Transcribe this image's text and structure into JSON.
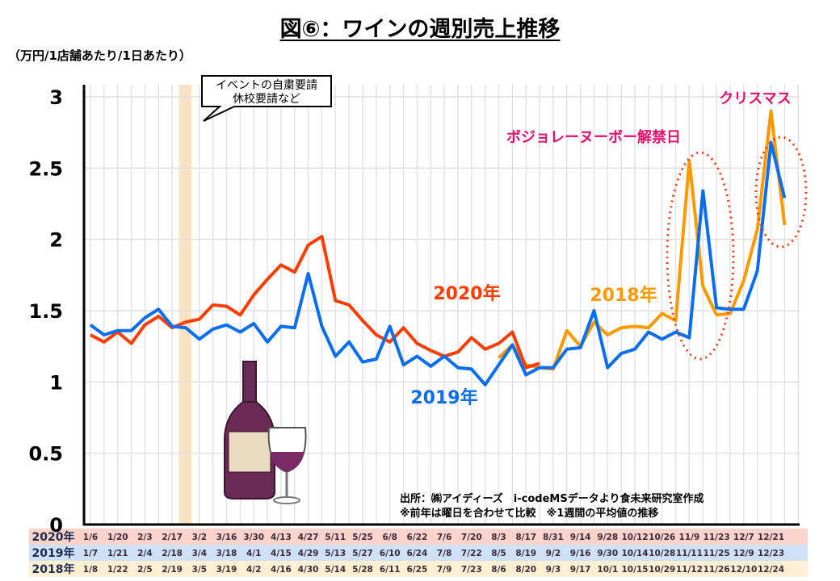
{
  "title": "図⑥：ワインの週別売上推移",
  "unit": "（万円/1店舗あたり/1日あたり）",
  "callout": [
    "イベントの自粛要請",
    "休校要請など"
  ],
  "source": [
    "出所：㈱アイディーズ　i-codeMSデータより食未来研究室作成",
    "※前年は曜日を合わせて比較　※1週間の平均値の推移"
  ],
  "annotations": {
    "beaujolais": "ボジョレーヌーボー解禁日",
    "christmas": "クリスマス"
  },
  "colors": {
    "y2020": "#ff3d00",
    "y2019": "#0a6ef0",
    "y2018": "#ff9900",
    "accent": "#e8106e"
  },
  "chart_data": {
    "type": "line",
    "title": "図⑥：ワインの週別売上推移",
    "ylabel": "（万円/1店舗あたり/1日あたり）",
    "ylim": [
      0,
      3
    ],
    "yticks": [
      "0",
      "0.5",
      "1",
      "1.5",
      "2",
      "2.5",
      "3"
    ],
    "grid": true,
    "row_labels": [
      "2020年",
      "2019年",
      "2018年"
    ],
    "tick_labels": {
      "2020": [
        "1/6",
        "1/20",
        "2/3",
        "2/17",
        "3/2",
        "3/16",
        "3/30",
        "4/13",
        "4/27",
        "5/11",
        "5/25",
        "6/8",
        "6/22",
        "7/6",
        "7/20",
        "8/3",
        "8/17",
        "8/31",
        "9/14",
        "9/28",
        "10/12",
        "10/26",
        "11/9",
        "11/23",
        "12/7",
        "12/21"
      ],
      "2019": [
        "1/7",
        "1/21",
        "2/4",
        "2/18",
        "3/4",
        "3/18",
        "4/1",
        "4/15",
        "4/29",
        "5/13",
        "5/27",
        "6/10",
        "6/24",
        "7/8",
        "7/22",
        "8/5",
        "8/19",
        "9/2",
        "9/16",
        "9/30",
        "10/14",
        "10/28",
        "11/11",
        "11/25",
        "12/9",
        "12/23"
      ],
      "2018": [
        "1/8",
        "1/22",
        "2/5",
        "2/19",
        "3/5",
        "3/19",
        "4/2",
        "4/16",
        "4/30",
        "5/14",
        "5/28",
        "6/11",
        "6/25",
        "7/9",
        "7/23",
        "8/6",
        "8/20",
        "9/3",
        "9/17",
        "10/1",
        "10/15",
        "10/29",
        "11/12",
        "11/26",
        "12/10",
        "12/24"
      ]
    },
    "series": [
      {
        "name": "2020年",
        "start_week": 0,
        "values": [
          1.33,
          1.28,
          1.35,
          1.27,
          1.4,
          1.46,
          1.38,
          1.42,
          1.44,
          1.54,
          1.53,
          1.47,
          1.61,
          1.72,
          1.82,
          1.77,
          1.96,
          2.02,
          1.57,
          1.54,
          1.43,
          1.33,
          1.28,
          1.38,
          1.27,
          1.22,
          1.18,
          1.21,
          1.31,
          1.23,
          1.27,
          1.35,
          1.1,
          1.13
        ]
      },
      {
        "name": "2019年",
        "start_week": 0,
        "values": [
          1.4,
          1.33,
          1.36,
          1.36,
          1.45,
          1.51,
          1.39,
          1.38,
          1.3,
          1.37,
          1.4,
          1.35,
          1.41,
          1.28,
          1.39,
          1.38,
          1.76,
          1.39,
          1.18,
          1.28,
          1.14,
          1.16,
          1.39,
          1.12,
          1.18,
          1.11,
          1.18,
          1.1,
          1.09,
          0.98,
          1.12,
          1.26,
          1.05,
          1.1,
          1.1,
          1.23,
          1.24,
          1.5,
          1.1,
          1.2,
          1.23,
          1.35,
          1.3,
          1.35,
          1.31,
          2.34,
          1.52,
          1.51,
          1.51,
          1.78,
          2.68,
          2.29
        ]
      },
      {
        "name": "2018年",
        "start_week": 30,
        "values": [
          1.17,
          1.26,
          1.12,
          1.1,
          1.09,
          1.36,
          1.25,
          1.42,
          1.33,
          1.38,
          1.39,
          1.38,
          1.48,
          1.43,
          2.55,
          1.67,
          1.47,
          1.48,
          1.71,
          2.07,
          2.9,
          2.1
        ]
      }
    ]
  }
}
